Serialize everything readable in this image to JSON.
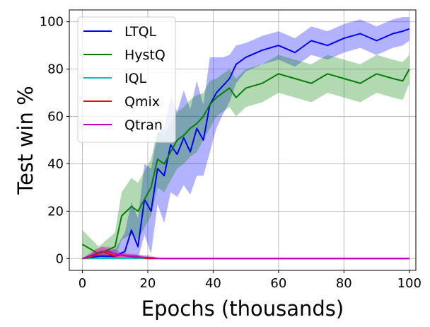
{
  "chart_data": {
    "type": "line",
    "title": "",
    "xlabel": "Epochs (thousands)",
    "ylabel": "Test win %",
    "xlim": [
      -4,
      102
    ],
    "ylim": [
      -5,
      105
    ],
    "xticks": [
      0,
      20,
      40,
      60,
      80,
      100
    ],
    "yticks": [
      0,
      20,
      40,
      60,
      80,
      100
    ],
    "grid": true,
    "legend_position": "top-left",
    "series": [
      {
        "name": "LTQL",
        "color": "#0000ff",
        "x": [
          0,
          5,
          10,
          13,
          15,
          17,
          19,
          21,
          23,
          25,
          27,
          29,
          31,
          33,
          35,
          37,
          39,
          41,
          43,
          45,
          47,
          50,
          55,
          60,
          65,
          70,
          75,
          80,
          85,
          90,
          95,
          98,
          100
        ],
        "y": [
          0,
          1,
          1,
          3,
          12,
          5,
          25,
          20,
          38,
          35,
          48,
          44,
          51,
          45,
          55,
          50,
          65,
          70,
          73,
          76,
          82,
          85,
          88,
          90,
          87,
          92,
          90,
          93,
          95,
          92,
          95,
          96,
          97
        ],
        "band": [
          0,
          2,
          3,
          8,
          12,
          12,
          15,
          18,
          15,
          20,
          20,
          18,
          20,
          18,
          20,
          15,
          20,
          15,
          12,
          10,
          8,
          6,
          6,
          6,
          6,
          6,
          6,
          6,
          6,
          6,
          6,
          6,
          5
        ]
      },
      {
        "name": "HystQ",
        "color": "#008000",
        "x": [
          0,
          5,
          10,
          12,
          15,
          17,
          19,
          21,
          23,
          25,
          27,
          29,
          31,
          33,
          35,
          37,
          39,
          41,
          43,
          45,
          47,
          50,
          55,
          60,
          65,
          70,
          75,
          80,
          85,
          90,
          95,
          98,
          100
        ],
        "y": [
          6,
          2,
          5,
          18,
          22,
          20,
          25,
          30,
          42,
          40,
          45,
          50,
          52,
          55,
          57,
          60,
          65,
          68,
          70,
          72,
          68,
          72,
          74,
          78,
          76,
          74,
          78,
          76,
          74,
          78,
          76,
          75,
          80
        ],
        "band": [
          6,
          3,
          6,
          10,
          12,
          12,
          12,
          12,
          12,
          12,
          12,
          12,
          12,
          12,
          12,
          10,
          10,
          8,
          8,
          8,
          8,
          8,
          8,
          8,
          8,
          8,
          8,
          8,
          8,
          8,
          8,
          8,
          6
        ]
      },
      {
        "name": "IQL",
        "color": "#00bfbf",
        "x": [
          0,
          100
        ],
        "y": [
          0,
          0
        ],
        "band": [
          0,
          0
        ]
      },
      {
        "name": "Qmix",
        "color": "#ff0000",
        "x": [
          0,
          2,
          4,
          6,
          8,
          10,
          12,
          14,
          16,
          18,
          20,
          24,
          28,
          100
        ],
        "y": [
          0,
          0.5,
          1.5,
          3,
          2,
          1,
          1.5,
          1,
          0.5,
          0.5,
          0,
          0,
          0,
          0
        ],
        "band": [
          0,
          1,
          2,
          2,
          2,
          1,
          1,
          1,
          1,
          1,
          0,
          0,
          0,
          0
        ]
      },
      {
        "name": "Qtran",
        "color": "#bf00bf",
        "x": [
          0,
          2,
          4,
          6,
          8,
          10,
          12,
          14,
          16,
          18,
          20,
          24,
          28,
          100
        ],
        "y": [
          0,
          1,
          2,
          3,
          3,
          2,
          1.5,
          1,
          1,
          0.5,
          0.5,
          0,
          0,
          0
        ],
        "band": [
          0,
          1,
          2,
          2,
          2,
          2,
          1,
          1,
          1,
          1,
          1,
          0,
          0,
          0
        ]
      }
    ]
  }
}
